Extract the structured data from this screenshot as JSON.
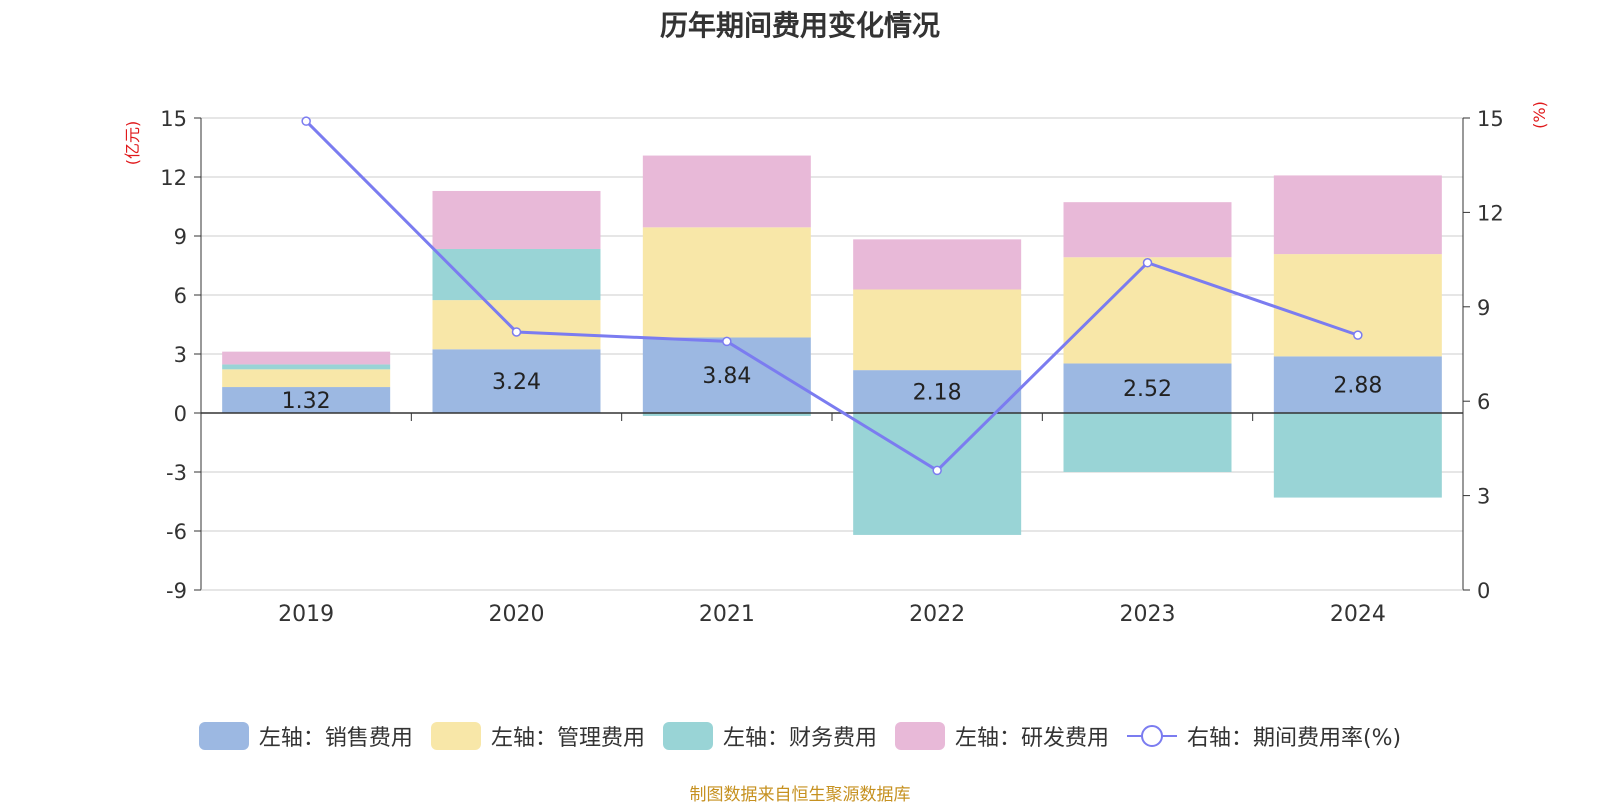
{
  "chart_data": {
    "type": "bar+line",
    "title": "历年期间费用变化情况",
    "categories": [
      "2019",
      "2020",
      "2021",
      "2022",
      "2023",
      "2024"
    ],
    "series": [
      {
        "name": "左轴：销售费用",
        "axis": "left",
        "color": "#9cb8e2",
        "values": [
          1.32,
          3.24,
          3.84,
          2.18,
          2.52,
          2.88
        ],
        "labels": [
          "1.32",
          "3.24",
          "3.84",
          "2.18",
          "2.52",
          "2.88"
        ]
      },
      {
        "name": "左轴：管理费用",
        "axis": "left",
        "color": "#f8e7a8",
        "values": [
          0.9,
          2.5,
          5.6,
          4.1,
          5.4,
          5.2
        ]
      },
      {
        "name": "左轴：财务费用",
        "axis": "left",
        "color": "#99d4d6",
        "values": [
          0.25,
          2.6,
          -0.15,
          -6.2,
          -3.0,
          -4.3
        ]
      },
      {
        "name": "左轴：研发费用",
        "axis": "left",
        "color": "#e8b9d8",
        "values": [
          0.65,
          2.95,
          3.65,
          2.55,
          2.8,
          4.0
        ]
      },
      {
        "name": "右轴：期间费用率(%)",
        "axis": "right",
        "type": "line",
        "color": "#7b7cf0",
        "values": [
          14.9,
          8.2,
          7.9,
          3.8,
          10.4,
          8.1
        ]
      }
    ],
    "y_left": {
      "unit": "(亿元)",
      "min": -9,
      "max": 15,
      "ticks": [
        15,
        12,
        9,
        6,
        3,
        0,
        -3,
        -6,
        -9
      ]
    },
    "y_right": {
      "unit": "(%)",
      "min": 0,
      "max": 15,
      "ticks": [
        15,
        12,
        9,
        6,
        3,
        0
      ]
    },
    "legend_position": "bottom",
    "source": "制图数据来自恒生聚源数据库",
    "colors": {
      "axis_unit": "#e0191b",
      "grid": "#cccccc",
      "axis": "#333333",
      "source": "#c69120"
    }
  }
}
